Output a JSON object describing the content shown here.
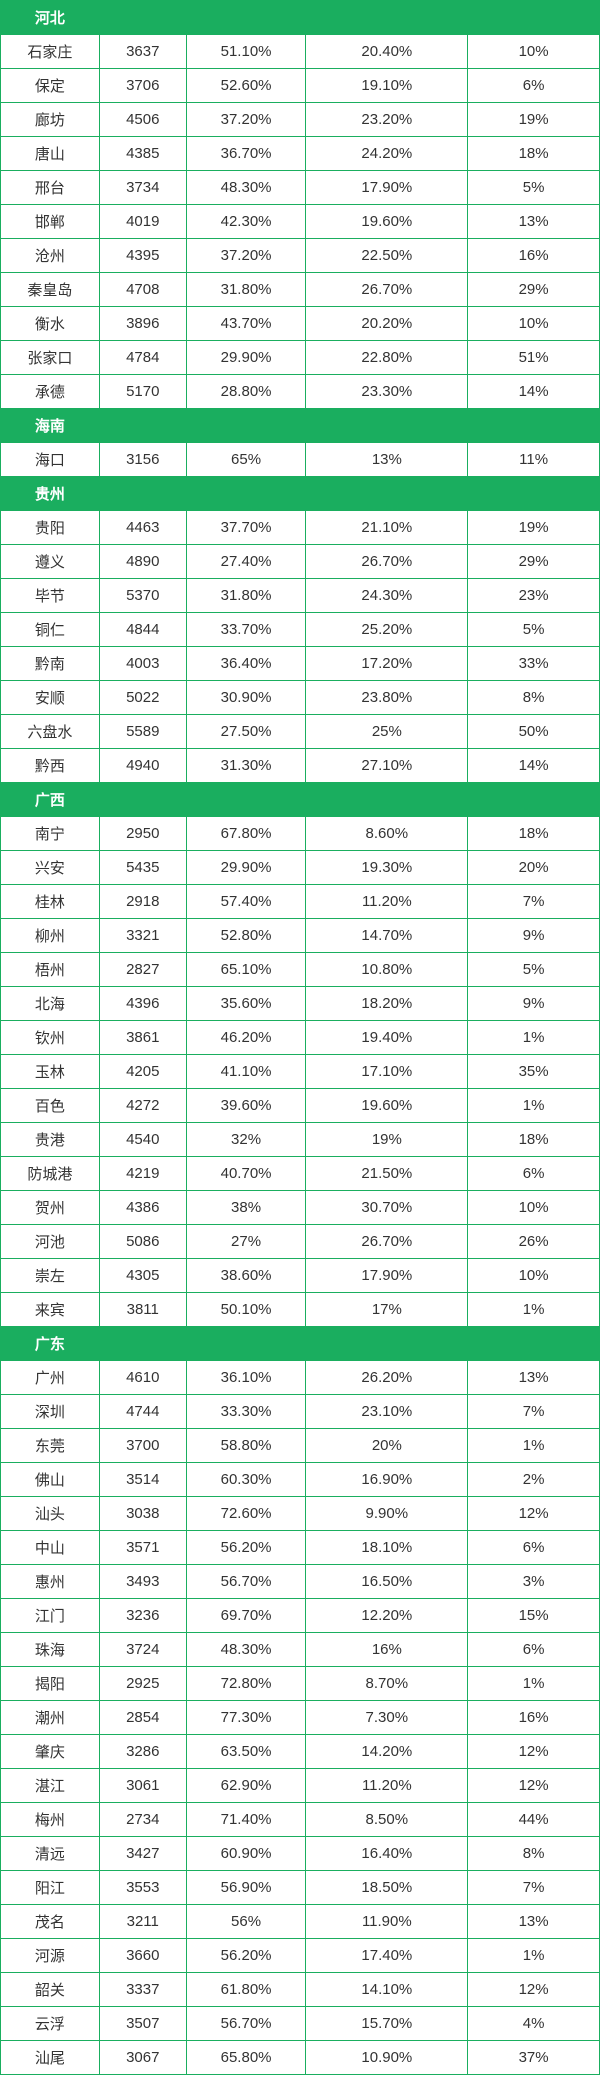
{
  "sections": [
    {
      "name": "河北",
      "rows": [
        [
          "石家庄",
          "3637",
          "51.10%",
          "20.40%",
          "10%"
        ],
        [
          "保定",
          "3706",
          "52.60%",
          "19.10%",
          "6%"
        ],
        [
          "廊坊",
          "4506",
          "37.20%",
          "23.20%",
          "19%"
        ],
        [
          "唐山",
          "4385",
          "36.70%",
          "24.20%",
          "18%"
        ],
        [
          "邢台",
          "3734",
          "48.30%",
          "17.90%",
          "5%"
        ],
        [
          "邯郸",
          "4019",
          "42.30%",
          "19.60%",
          "13%"
        ],
        [
          "沧州",
          "4395",
          "37.20%",
          "22.50%",
          "16%"
        ],
        [
          "秦皇岛",
          "4708",
          "31.80%",
          "26.70%",
          "29%"
        ],
        [
          "衡水",
          "3896",
          "43.70%",
          "20.20%",
          "10%"
        ],
        [
          "张家口",
          "4784",
          "29.90%",
          "22.80%",
          "51%"
        ],
        [
          "承德",
          "5170",
          "28.80%",
          "23.30%",
          "14%"
        ]
      ]
    },
    {
      "name": "海南",
      "rows": [
        [
          "海口",
          "3156",
          "65%",
          "13%",
          "11%"
        ]
      ]
    },
    {
      "name": "贵州",
      "rows": [
        [
          "贵阳",
          "4463",
          "37.70%",
          "21.10%",
          "19%"
        ],
        [
          "遵义",
          "4890",
          "27.40%",
          "26.70%",
          "29%"
        ],
        [
          "毕节",
          "5370",
          "31.80%",
          "24.30%",
          "23%"
        ],
        [
          "铜仁",
          "4844",
          "33.70%",
          "25.20%",
          "5%"
        ],
        [
          "黔南",
          "4003",
          "36.40%",
          "17.20%",
          "33%"
        ],
        [
          "安顺",
          "5022",
          "30.90%",
          "23.80%",
          "8%"
        ],
        [
          "六盘水",
          "5589",
          "27.50%",
          "25%",
          "50%"
        ],
        [
          "黔西",
          "4940",
          "31.30%",
          "27.10%",
          "14%"
        ]
      ]
    },
    {
      "name": "广西",
      "rows": [
        [
          "南宁",
          "2950",
          "67.80%",
          "8.60%",
          "18%"
        ],
        [
          "兴安",
          "5435",
          "29.90%",
          "19.30%",
          "20%"
        ],
        [
          "桂林",
          "2918",
          "57.40%",
          "11.20%",
          "7%"
        ],
        [
          "柳州",
          "3321",
          "52.80%",
          "14.70%",
          "9%"
        ],
        [
          "梧州",
          "2827",
          "65.10%",
          "10.80%",
          "5%"
        ],
        [
          "北海",
          "4396",
          "35.60%",
          "18.20%",
          "9%"
        ],
        [
          "钦州",
          "3861",
          "46.20%",
          "19.40%",
          "1%"
        ],
        [
          "玉林",
          "4205",
          "41.10%",
          "17.10%",
          "35%"
        ],
        [
          "百色",
          "4272",
          "39.60%",
          "19.60%",
          "1%"
        ],
        [
          "贵港",
          "4540",
          "32%",
          "19%",
          "18%"
        ],
        [
          "防城港",
          "4219",
          "40.70%",
          "21.50%",
          "6%"
        ],
        [
          "贺州",
          "4386",
          "38%",
          "30.70%",
          "10%"
        ],
        [
          "河池",
          "5086",
          "27%",
          "26.70%",
          "26%"
        ],
        [
          "崇左",
          "4305",
          "38.60%",
          "17.90%",
          "10%"
        ],
        [
          "来宾",
          "3811",
          "50.10%",
          "17%",
          "1%"
        ]
      ]
    },
    {
      "name": "广东",
      "rows": [
        [
          "广州",
          "4610",
          "36.10%",
          "26.20%",
          "13%"
        ],
        [
          "深圳",
          "4744",
          "33.30%",
          "23.10%",
          "7%"
        ],
        [
          "东莞",
          "3700",
          "58.80%",
          "20%",
          "1%"
        ],
        [
          "佛山",
          "3514",
          "60.30%",
          "16.90%",
          "2%"
        ],
        [
          "汕头",
          "3038",
          "72.60%",
          "9.90%",
          "12%"
        ],
        [
          "中山",
          "3571",
          "56.20%",
          "18.10%",
          "6%"
        ],
        [
          "惠州",
          "3493",
          "56.70%",
          "16.50%",
          "3%"
        ],
        [
          "江门",
          "3236",
          "69.70%",
          "12.20%",
          "15%"
        ],
        [
          "珠海",
          "3724",
          "48.30%",
          "16%",
          "6%"
        ],
        [
          "揭阳",
          "2925",
          "72.80%",
          "8.70%",
          "1%"
        ],
        [
          "潮州",
          "2854",
          "77.30%",
          "7.30%",
          "16%"
        ],
        [
          "肇庆",
          "3286",
          "63.50%",
          "14.20%",
          "12%"
        ],
        [
          "湛江",
          "3061",
          "62.90%",
          "11.20%",
          "12%"
        ],
        [
          "梅州",
          "2734",
          "71.40%",
          "8.50%",
          "44%"
        ],
        [
          "清远",
          "3427",
          "60.90%",
          "16.40%",
          "8%"
        ],
        [
          "阳江",
          "3553",
          "56.90%",
          "18.50%",
          "7%"
        ],
        [
          "茂名",
          "3211",
          "56%",
          "11.90%",
          "13%"
        ],
        [
          "河源",
          "3660",
          "56.20%",
          "17.40%",
          "1%"
        ],
        [
          "韶关",
          "3337",
          "61.80%",
          "14.10%",
          "12%"
        ],
        [
          "云浮",
          "3507",
          "56.70%",
          "15.70%",
          "4%"
        ],
        [
          "汕尾",
          "3067",
          "65.80%",
          "10.90%",
          "37%"
        ]
      ]
    }
  ]
}
